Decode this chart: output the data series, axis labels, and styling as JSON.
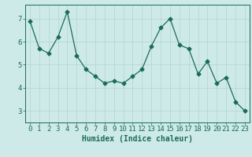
{
  "x": [
    0,
    1,
    2,
    3,
    4,
    5,
    6,
    7,
    8,
    9,
    10,
    11,
    12,
    13,
    14,
    15,
    16,
    17,
    18,
    19,
    20,
    21,
    22,
    23
  ],
  "y": [
    6.9,
    5.7,
    5.5,
    6.2,
    7.3,
    5.4,
    4.8,
    4.5,
    4.2,
    4.3,
    4.2,
    4.5,
    4.8,
    5.8,
    6.6,
    7.0,
    5.85,
    5.7,
    4.6,
    5.15,
    4.2,
    4.45,
    3.4,
    3.0
  ],
  "line_color": "#1a6b5a",
  "marker": "D",
  "marker_size": 2.5,
  "bg_color": "#ceeae8",
  "grid_color": "#b0d4d0",
  "xlabel": "Humidex (Indice chaleur)",
  "xlim": [
    -0.5,
    23.5
  ],
  "ylim": [
    2.5,
    7.6
  ],
  "yticks": [
    3,
    4,
    5,
    6,
    7
  ],
  "xticks": [
    0,
    1,
    2,
    3,
    4,
    5,
    6,
    7,
    8,
    9,
    10,
    11,
    12,
    13,
    14,
    15,
    16,
    17,
    18,
    19,
    20,
    21,
    22,
    23
  ],
  "tick_color": "#1a6b5a",
  "xlabel_fontsize": 7,
  "tick_fontsize": 6.5
}
